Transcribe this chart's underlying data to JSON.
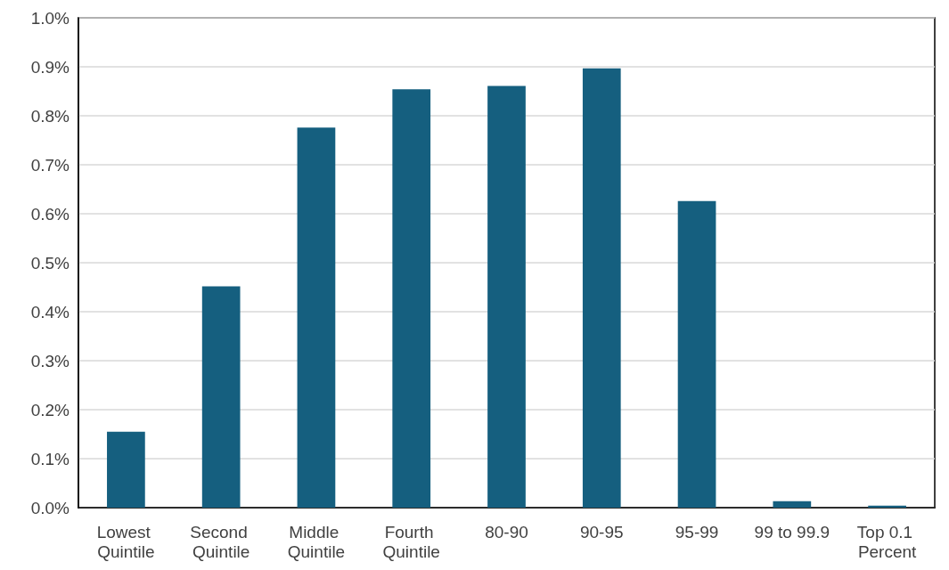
{
  "chart_data": {
    "type": "bar",
    "categories": [
      "Lowest Quintile",
      "Second Quintile",
      "Middle Quintile",
      "Fourth Quintile",
      "80-90",
      "90-95",
      "95-99",
      "99 to 99.9",
      "Top 0.1 Percent"
    ],
    "values": [
      0.155,
      0.452,
      0.776,
      0.854,
      0.861,
      0.897,
      0.626,
      0.013,
      0.004
    ],
    "color": "#155f7f",
    "ylim": [
      0,
      1
    ],
    "yticks": [
      {
        "value": 0,
        "label": "0.0%"
      },
      {
        "value": 0.1,
        "label": "0.1%"
      },
      {
        "value": 0.2,
        "label": "0.2%"
      },
      {
        "value": 0.3,
        "label": "0.3%"
      },
      {
        "value": 0.4,
        "label": "0.4%"
      },
      {
        "value": 0.5,
        "label": "0.5%"
      },
      {
        "value": 0.6,
        "label": "0.6%"
      },
      {
        "value": 0.7,
        "label": "0.7%"
      },
      {
        "value": 0.8,
        "label": "0.8%"
      },
      {
        "value": 0.9,
        "label": "0.9%"
      },
      {
        "value": 1,
        "label": "1.0%"
      }
    ],
    "grid": "y"
  }
}
